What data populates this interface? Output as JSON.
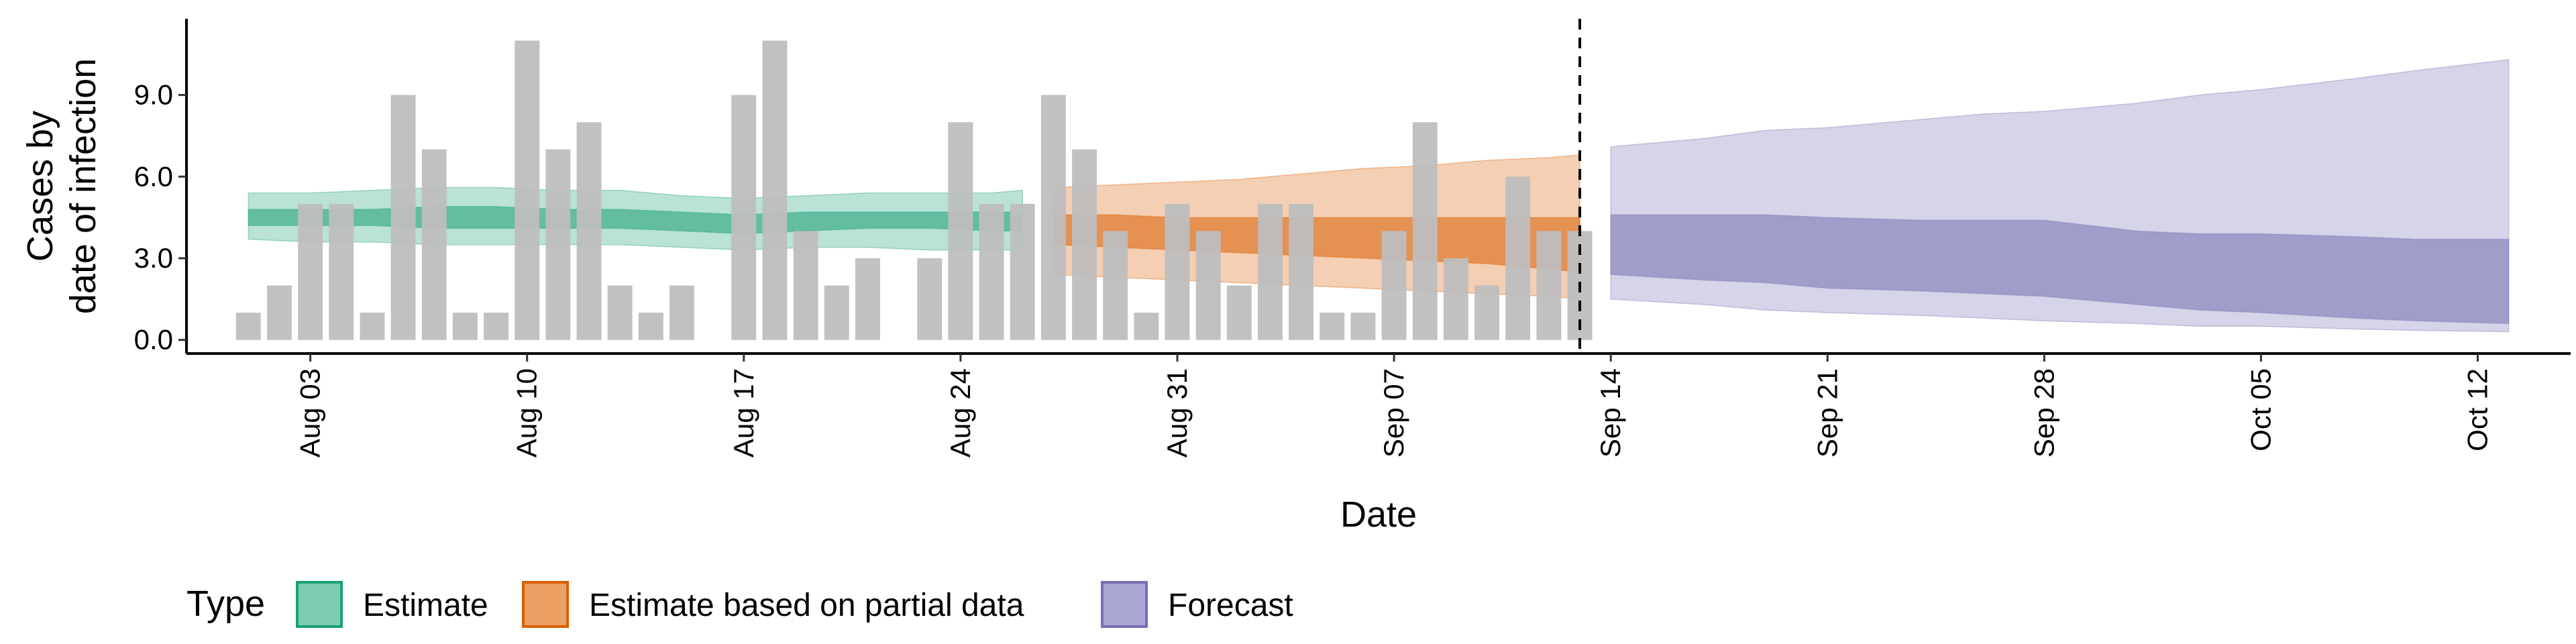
{
  "chart_data": {
    "type": "bar+area",
    "xlabel": "Date",
    "ylabel_lines": [
      "Cases by",
      "date of infection"
    ],
    "ylim": [
      -0.5,
      11.8
    ],
    "y_ticks": [
      0.0,
      3.0,
      6.0,
      9.0
    ],
    "y_tick_labels": [
      "0.0",
      "3.0",
      "6.0",
      "9.0"
    ],
    "x_start": "2023-07-30",
    "x_end": "2023-10-15",
    "x_ticks": [
      {
        "date": "2023-08-03",
        "label": "Aug 03"
      },
      {
        "date": "2023-08-10",
        "label": "Aug 10"
      },
      {
        "date": "2023-08-17",
        "label": "Aug 17"
      },
      {
        "date": "2023-08-24",
        "label": "Aug 24"
      },
      {
        "date": "2023-08-31",
        "label": "Aug 31"
      },
      {
        "date": "2023-09-07",
        "label": "Sep 07"
      },
      {
        "date": "2023-09-14",
        "label": "Sep 14"
      },
      {
        "date": "2023-09-21",
        "label": "Sep 21"
      },
      {
        "date": "2023-09-28",
        "label": "Sep 28"
      },
      {
        "date": "2023-10-05",
        "label": "Oct 05"
      },
      {
        "date": "2023-10-12",
        "label": "Oct 12"
      }
    ],
    "vline_date": "2023-09-13",
    "grid": false,
    "legend": {
      "title": "Type",
      "position": "bottom",
      "entries": [
        {
          "label": "Estimate",
          "fill": "#7fcdb0",
          "stroke": "#1b9e77"
        },
        {
          "label": "Estimate based on partial data",
          "fill": "#eba064",
          "stroke": "#d95f02"
        },
        {
          "label": "Forecast",
          "fill": "#aaa6d3",
          "stroke": "#7570b3"
        }
      ]
    },
    "bars": {
      "color": "#bebebe",
      "dates": [
        "2023-08-01",
        "2023-08-02",
        "2023-08-03",
        "2023-08-04",
        "2023-08-05",
        "2023-08-06",
        "2023-08-07",
        "2023-08-08",
        "2023-08-09",
        "2023-08-10",
        "2023-08-11",
        "2023-08-12",
        "2023-08-13",
        "2023-08-14",
        "2023-08-15",
        "2023-08-16",
        "2023-08-17",
        "2023-08-18",
        "2023-08-19",
        "2023-08-20",
        "2023-08-21",
        "2023-08-22",
        "2023-08-23",
        "2023-08-24",
        "2023-08-25",
        "2023-08-26",
        "2023-08-27",
        "2023-08-28",
        "2023-08-29",
        "2023-08-30",
        "2023-08-31",
        "2023-09-01",
        "2023-09-02",
        "2023-09-03",
        "2023-09-04",
        "2023-09-05",
        "2023-09-06",
        "2023-09-07",
        "2023-09-08",
        "2023-09-09",
        "2023-09-10",
        "2023-09-11",
        "2023-09-12",
        "2023-09-13"
      ],
      "values": [
        1,
        2,
        5,
        5,
        1,
        9,
        7,
        1,
        1,
        11,
        7,
        8,
        2,
        1,
        2,
        0,
        9,
        11,
        4,
        2,
        3,
        0,
        3,
        8,
        5,
        5,
        9,
        7,
        4,
        1,
        5,
        4,
        2,
        5,
        5,
        1,
        1,
        4,
        8,
        3,
        2,
        6,
        4,
        4
      ]
    },
    "series": [
      {
        "name": "Estimate",
        "fill": "#1b9e77",
        "dates": [
          "2023-08-01",
          "2023-08-03",
          "2023-08-05",
          "2023-08-07",
          "2023-08-09",
          "2023-08-11",
          "2023-08-13",
          "2023-08-15",
          "2023-08-17",
          "2023-08-19",
          "2023-08-21",
          "2023-08-23",
          "2023-08-25",
          "2023-08-26"
        ],
        "outer_lower": [
          3.7,
          3.6,
          3.6,
          3.5,
          3.5,
          3.5,
          3.5,
          3.4,
          3.3,
          3.4,
          3.4,
          3.3,
          3.3,
          3.3
        ],
        "outer_upper": [
          5.4,
          5.4,
          5.5,
          5.6,
          5.6,
          5.5,
          5.5,
          5.3,
          5.2,
          5.3,
          5.4,
          5.4,
          5.4,
          5.5
        ],
        "inner_lower": [
          4.2,
          4.2,
          4.2,
          4.1,
          4.1,
          4.1,
          4.1,
          4.0,
          3.9,
          4.0,
          4.1,
          4.1,
          4.0,
          4.0
        ],
        "inner_upper": [
          4.8,
          4.8,
          4.8,
          4.9,
          4.9,
          4.8,
          4.8,
          4.7,
          4.6,
          4.7,
          4.7,
          4.7,
          4.7,
          4.7
        ]
      },
      {
        "name": "Estimate based on partial data",
        "fill": "#d95f02",
        "dates": [
          "2023-08-27",
          "2023-08-29",
          "2023-08-31",
          "2023-09-02",
          "2023-09-04",
          "2023-09-06",
          "2023-09-08",
          "2023-09-10",
          "2023-09-12",
          "2023-09-13"
        ],
        "outer_lower": [
          2.4,
          2.3,
          2.2,
          2.1,
          2.0,
          1.9,
          1.8,
          1.7,
          1.6,
          1.5
        ],
        "outer_upper": [
          5.6,
          5.7,
          5.8,
          5.9,
          6.1,
          6.3,
          6.4,
          6.6,
          6.7,
          6.8
        ],
        "inner_lower": [
          3.5,
          3.4,
          3.3,
          3.2,
          3.1,
          3.0,
          2.9,
          2.8,
          2.6,
          2.5
        ],
        "inner_upper": [
          4.6,
          4.6,
          4.5,
          4.5,
          4.5,
          4.5,
          4.5,
          4.5,
          4.5,
          4.5
        ]
      },
      {
        "name": "Forecast",
        "fill": "#7570b3",
        "dates": [
          "2023-09-14",
          "2023-09-17",
          "2023-09-19",
          "2023-09-21",
          "2023-09-24",
          "2023-09-26",
          "2023-09-28",
          "2023-10-01",
          "2023-10-03",
          "2023-10-05",
          "2023-10-08",
          "2023-10-10",
          "2023-10-13"
        ],
        "outer_lower": [
          1.5,
          1.3,
          1.1,
          1.0,
          0.9,
          0.8,
          0.7,
          0.6,
          0.5,
          0.5,
          0.4,
          0.35,
          0.3
        ],
        "outer_upper": [
          7.1,
          7.4,
          7.7,
          7.8,
          8.1,
          8.3,
          8.4,
          8.7,
          9.0,
          9.2,
          9.6,
          9.9,
          10.3
        ],
        "inner_lower": [
          2.4,
          2.2,
          2.1,
          1.9,
          1.8,
          1.7,
          1.6,
          1.3,
          1.1,
          1.0,
          0.8,
          0.7,
          0.6
        ],
        "inner_upper": [
          4.6,
          4.6,
          4.6,
          4.5,
          4.4,
          4.4,
          4.4,
          4.0,
          3.9,
          3.9,
          3.8,
          3.7,
          3.7
        ]
      }
    ]
  }
}
